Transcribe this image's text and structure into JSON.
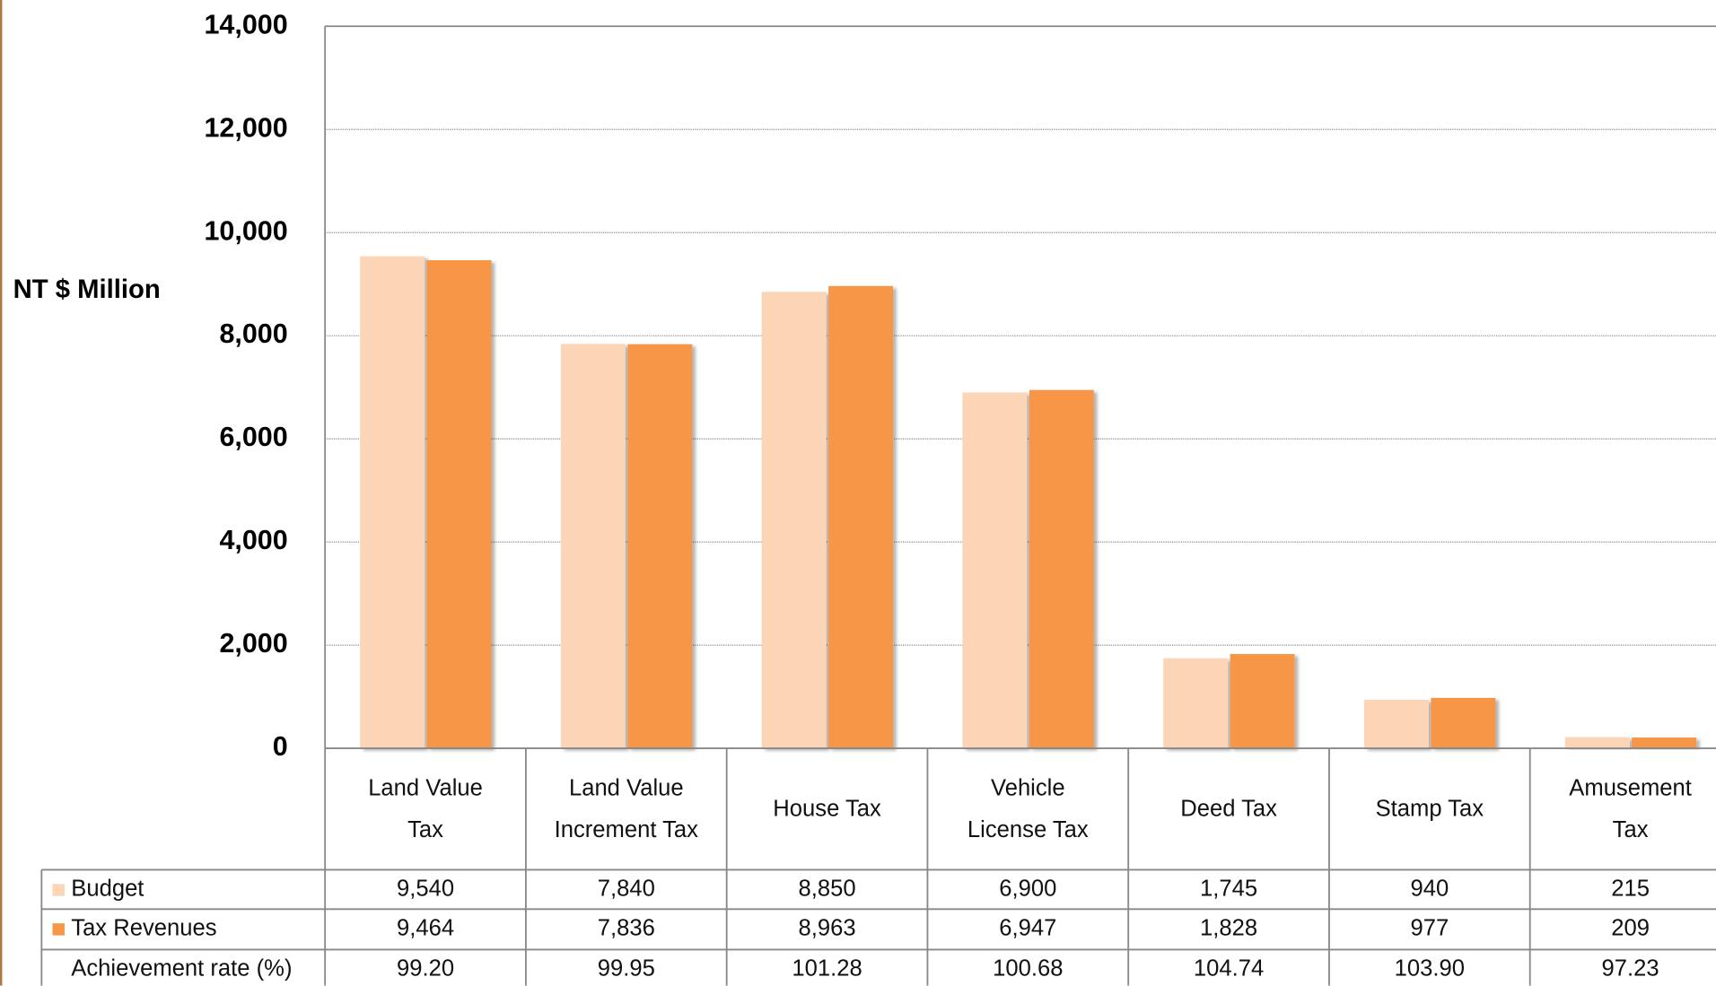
{
  "chart_data": {
    "type": "bar",
    "y_label": "NT $ Million",
    "categories": [
      "Land Value Tax",
      "Land Value Increment Tax",
      "House Tax",
      "Vehicle License Tax",
      "Deed Tax",
      "Stamp Tax",
      "Amusement Tax"
    ],
    "series": [
      {
        "name": "Budget",
        "color": "#fbd5b5",
        "values": [
          9540,
          7840,
          8850,
          6900,
          1745,
          940,
          215
        ],
        "value_labels": [
          "9,540",
          "7,840",
          "8,850",
          "6,900",
          "1,745",
          "940",
          "215"
        ]
      },
      {
        "name": "Tax Revenues",
        "color": "#f79646",
        "values": [
          9464,
          7836,
          8963,
          6947,
          1828,
          977,
          209
        ],
        "value_labels": [
          "9,464",
          "7,836",
          "8,963",
          "6,947",
          "1,828",
          "977",
          "209"
        ]
      }
    ],
    "achievement_rate": {
      "name": "Achievement rate (%)",
      "values": [
        99.2,
        99.95,
        101.28,
        100.68,
        104.74,
        103.9,
        97.23
      ],
      "value_labels": [
        "99.20",
        "99.95",
        "101.28",
        "100.68",
        "104.74",
        "103.90",
        "97.23"
      ]
    },
    "ylim": [
      0,
      14000
    ],
    "yticks": [
      0,
      {
        "value": 2000,
        "label": "2,000"
      },
      {
        "value": 4000,
        "label": "4,000"
      },
      {
        "value": 6000,
        "label": "6,000"
      },
      {
        "value": 8000,
        "label": "8,000"
      },
      {
        "value": 10000,
        "label": "10,000"
      },
      {
        "value": 12000,
        "label": "12,000"
      },
      {
        "value": 14000,
        "label": "14,000"
      }
    ],
    "grid": true
  }
}
